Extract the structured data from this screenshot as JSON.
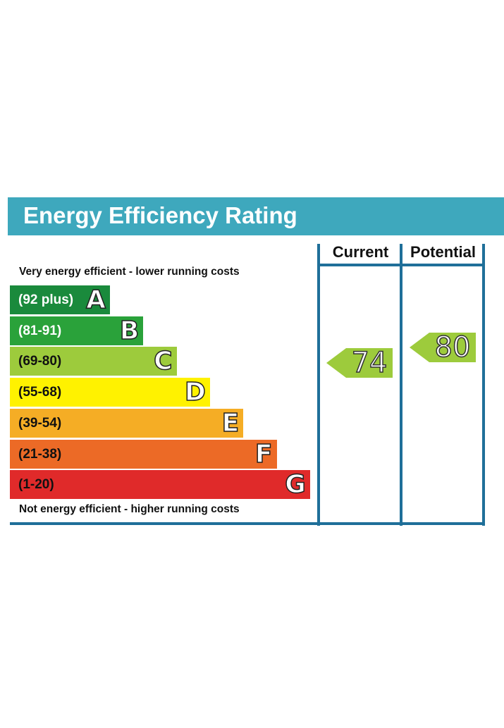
{
  "title": "Energy Efficiency Rating",
  "columns": {
    "current": "Current",
    "potential": "Potential"
  },
  "captions": {
    "top": "Very energy efficient - lower running costs",
    "bottom": "Not energy efficient - higher running costs"
  },
  "chart_data": {
    "type": "bar",
    "bands": [
      {
        "letter": "A",
        "range": "(92 plus)",
        "color": "#1a8a3c",
        "text_color": "#ffffff"
      },
      {
        "letter": "B",
        "range": "(81-91)",
        "color": "#2aa23a",
        "text_color": "#ffffff"
      },
      {
        "letter": "C",
        "range": "(69-80)",
        "color": "#9dcb3c",
        "text_color": "#111111"
      },
      {
        "letter": "D",
        "range": "(55-68)",
        "color": "#fff200",
        "text_color": "#111111"
      },
      {
        "letter": "E",
        "range": "(39-54)",
        "color": "#f5ad25",
        "text_color": "#111111"
      },
      {
        "letter": "F",
        "range": "(21-38)",
        "color": "#ec6a26",
        "text_color": "#111111"
      },
      {
        "letter": "G",
        "range": "(1-20)",
        "color": "#e02a2a",
        "text_color": "#111111"
      }
    ],
    "current": {
      "value": "74",
      "band": "C",
      "color": "#9dcb3c"
    },
    "potential": {
      "value": "80",
      "band": "C",
      "color": "#9dcb3c"
    }
  },
  "colors": {
    "header": "#3ea8bd",
    "frame": "#1f6f99"
  }
}
